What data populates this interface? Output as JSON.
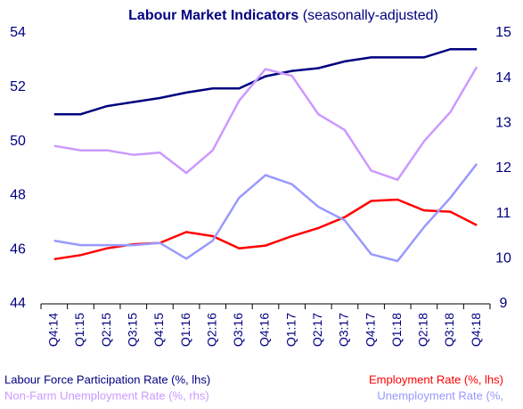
{
  "chart_data": {
    "type": "line",
    "title": "Labour Market Indicators",
    "subtitle": "(seasonally-adjusted)",
    "categories": [
      "Q4:14",
      "Q1:15",
      "Q2:15",
      "Q3:15",
      "Q4:15",
      "Q1:16",
      "Q2:16",
      "Q3:16",
      "Q4:16",
      "Q1:17",
      "Q2:17",
      "Q3:17",
      "Q4:17",
      "Q1:18",
      "Q2:18",
      "Q3:18",
      "Q4:18"
    ],
    "ylim": [
      44,
      54
    ],
    "yticks": [
      44,
      46,
      48,
      50,
      52,
      54
    ],
    "y2lim": [
      9,
      15
    ],
    "y2ticks": [
      9,
      10,
      11,
      12,
      13,
      14,
      15
    ],
    "series": [
      {
        "name": "Labour Force Participation Rate (%, lhs)",
        "color": "#000080",
        "values": [
          51.0,
          51.0,
          51.3,
          51.45,
          51.6,
          51.8,
          51.95,
          51.95,
          52.4,
          52.6,
          52.7,
          52.95,
          53.1,
          53.1,
          53.1,
          53.4,
          53.4
        ]
      },
      {
        "name": "Employment Rate (%, lhs)",
        "color": "#ff0000",
        "values": [
          45.65,
          45.8,
          46.05,
          46.2,
          46.25,
          46.65,
          46.5,
          46.05,
          46.15,
          46.5,
          46.8,
          47.2,
          47.8,
          47.85,
          47.45,
          47.4,
          46.9
        ]
      },
      {
        "name": "Non-Farm Unemployment  Rate (%, rhs)",
        "color": "#cc99ff",
        "axis": "y2",
        "values": [
          12.5,
          12.4,
          12.4,
          12.3,
          12.35,
          11.9,
          12.4,
          13.5,
          14.2,
          14.05,
          13.2,
          12.85,
          11.95,
          11.75,
          12.6,
          13.25,
          14.25
        ]
      },
      {
        "name": "Unemployment Rate (%,",
        "color": "#9999ff",
        "axis": "y2",
        "values": [
          10.4,
          10.3,
          10.3,
          10.3,
          10.35,
          10.0,
          10.4,
          11.35,
          11.85,
          11.65,
          11.15,
          10.85,
          10.1,
          9.95,
          10.7,
          11.35,
          12.1
        ]
      }
    ]
  }
}
